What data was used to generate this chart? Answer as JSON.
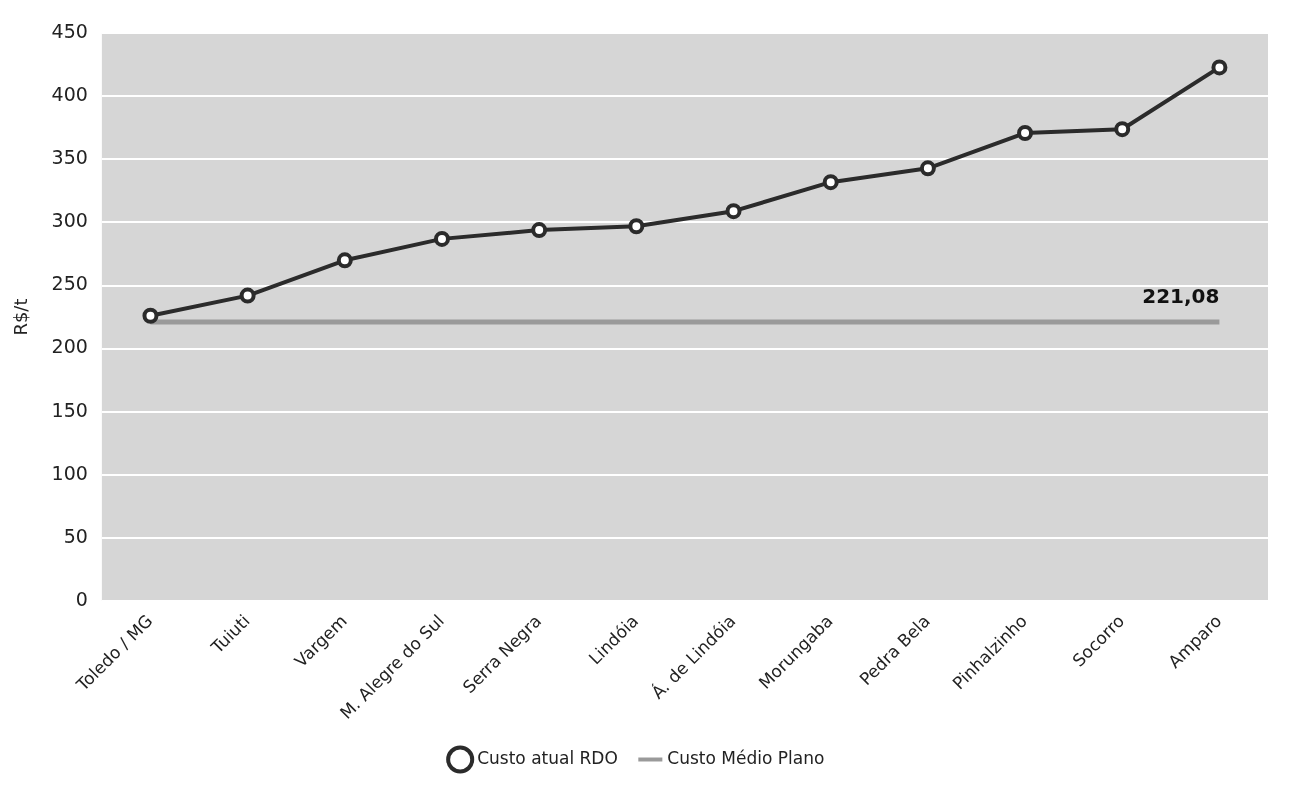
{
  "chart_data": {
    "type": "line",
    "ylabel": "R$/t",
    "categories": [
      "Toledo / MG",
      "Tuiuti",
      "Vargem",
      "M. Alegre do Sul",
      "Serra Negra",
      "Lindóia",
      "Á. de Lindóia",
      "Morungaba",
      "Pedra Bela",
      "Pinhalzinho",
      "Socorro",
      "Amparo"
    ],
    "series": [
      {
        "name": "Custo atual RDO",
        "color": "#2b2b2b",
        "marker": "circle",
        "values": [
          226,
          242,
          270,
          287,
          294,
          297,
          309,
          332,
          343,
          371,
          374,
          423
        ]
      },
      {
        "name": "Custo Médio Plano",
        "color": "#9a9a9a",
        "marker": "none",
        "values": [
          221.08,
          221.08,
          221.08,
          221.08,
          221.08,
          221.08,
          221.08,
          221.08,
          221.08,
          221.08,
          221.08,
          221.08
        ],
        "value_labels": [
          null,
          null,
          null,
          null,
          null,
          null,
          null,
          null,
          null,
          null,
          null,
          "221,08"
        ]
      }
    ],
    "ylim": [
      0,
      450
    ],
    "yticks": [
      0,
      50,
      100,
      150,
      200,
      250,
      300,
      350,
      400,
      450
    ],
    "grid": "y",
    "legend": "bottom"
  }
}
